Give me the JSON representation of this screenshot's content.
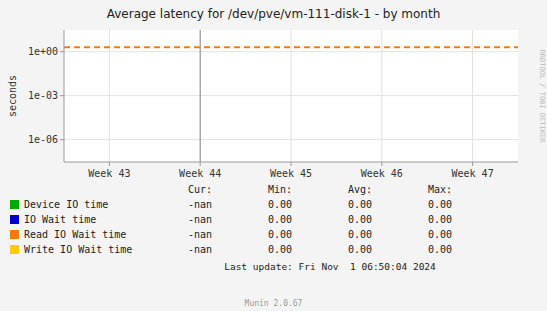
{
  "chart_data": {
    "type": "line",
    "title": "Average latency for /dev/pve/vm-111-disk-1 - by month",
    "y_label": "seconds",
    "categories": [
      "Week 43",
      "Week 44",
      "Week 45",
      "Week 46",
      "Week 47"
    ],
    "log": "y",
    "ylim": [
      3e-08,
      30
    ],
    "yticks": [
      {
        "value": 1e-06,
        "label": "1e-06"
      },
      {
        "value": 0.001,
        "label": "1e-03"
      },
      {
        "value": 1,
        "label": "1e+00"
      }
    ],
    "grid": true,
    "vline": "Week 44",
    "stat_headers": [
      "Cur:",
      "Min:",
      "Avg:",
      "Max:"
    ],
    "series": [
      {
        "name": "Device IO time",
        "color": "#00aa00",
        "stats": [
          "-nan",
          "0.00",
          "0.00",
          "0.00"
        ]
      },
      {
        "name": "IO Wait time",
        "color": "#0000cc",
        "stats": [
          "-nan",
          "0.00",
          "0.00",
          "0.00"
        ]
      },
      {
        "name": "Read IO Wait time",
        "color": "#ff7700",
        "hline": 2.0,
        "line_style": "dashed",
        "stats": [
          "-nan",
          "0.00",
          "0.00",
          "0.00"
        ]
      },
      {
        "name": "Write IO Wait time",
        "color": "#ffcc00",
        "stats": [
          "-nan",
          "0.00",
          "0.00",
          "0.00"
        ]
      }
    ],
    "annotations": [
      "Last update: Fri Nov  1 06:50:04 2024",
      "Munin 2.0.67",
      "RRDTOOL / TOBI OETIKER"
    ]
  }
}
